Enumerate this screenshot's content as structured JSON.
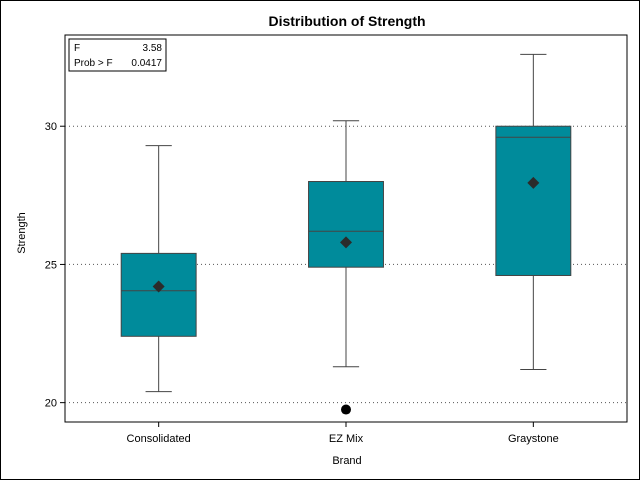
{
  "chart_data": {
    "type": "box",
    "title": "Distribution of Strength",
    "xlabel": "Brand",
    "ylabel": "Strength",
    "ylim": [
      19.3,
      33.3
    ],
    "yticks": [
      20,
      25,
      30
    ],
    "grid": "horizontal-dotted",
    "categories": [
      "Consolidated",
      "EZ Mix",
      "Graystone"
    ],
    "boxes": [
      {
        "category": "Consolidated",
        "min": 20.4,
        "q1": 22.4,
        "median": 24.05,
        "q3": 25.4,
        "max": 29.3,
        "mean": 24.2,
        "outliers": []
      },
      {
        "category": "EZ Mix",
        "min": 21.3,
        "q1": 24.9,
        "median": 26.2,
        "q3": 28.0,
        "max": 30.2,
        "mean": 25.8,
        "outliers": [
          19.75
        ]
      },
      {
        "category": "Graystone",
        "min": 21.2,
        "q1": 24.6,
        "median": 29.6,
        "q3": 30.0,
        "max": 32.6,
        "mean": 27.95,
        "outliers": []
      }
    ],
    "colors": {
      "box_fill": "#008B9B",
      "box_stroke": "#444444",
      "mean_marker": "#2b2b2b",
      "outlier": "#000000"
    },
    "inset": {
      "rows": [
        {
          "label": "F",
          "value": "3.58"
        },
        {
          "label": "Prob > F",
          "value": "0.0417"
        }
      ]
    }
  }
}
